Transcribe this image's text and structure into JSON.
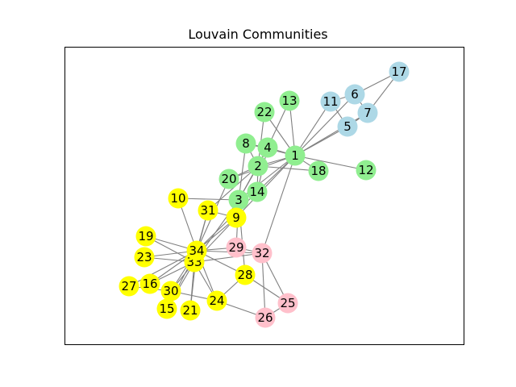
{
  "title": "Louvain Communities",
  "colors": {
    "community_blue": "#add8e6",
    "community_green": "#90ee90",
    "community_yellow": "#ffff00",
    "community_pink": "#ffc0cb",
    "edge": "#808080",
    "frame": "#000000"
  },
  "nodes": [
    {
      "id": "1",
      "community": "green"
    },
    {
      "id": "2",
      "community": "green"
    },
    {
      "id": "3",
      "community": "green"
    },
    {
      "id": "4",
      "community": "green"
    },
    {
      "id": "5",
      "community": "blue"
    },
    {
      "id": "6",
      "community": "blue"
    },
    {
      "id": "7",
      "community": "blue"
    },
    {
      "id": "8",
      "community": "green"
    },
    {
      "id": "9",
      "community": "yellow"
    },
    {
      "id": "10",
      "community": "yellow"
    },
    {
      "id": "11",
      "community": "blue"
    },
    {
      "id": "12",
      "community": "green"
    },
    {
      "id": "13",
      "community": "green"
    },
    {
      "id": "14",
      "community": "green"
    },
    {
      "id": "15",
      "community": "yellow"
    },
    {
      "id": "16",
      "community": "yellow"
    },
    {
      "id": "17",
      "community": "blue"
    },
    {
      "id": "18",
      "community": "green"
    },
    {
      "id": "19",
      "community": "yellow"
    },
    {
      "id": "20",
      "community": "green"
    },
    {
      "id": "21",
      "community": "yellow"
    },
    {
      "id": "22",
      "community": "green"
    },
    {
      "id": "23",
      "community": "yellow"
    },
    {
      "id": "24",
      "community": "yellow"
    },
    {
      "id": "25",
      "community": "pink"
    },
    {
      "id": "26",
      "community": "pink"
    },
    {
      "id": "27",
      "community": "yellow"
    },
    {
      "id": "28",
      "community": "yellow"
    },
    {
      "id": "29",
      "community": "pink"
    },
    {
      "id": "30",
      "community": "yellow"
    },
    {
      "id": "31",
      "community": "yellow"
    },
    {
      "id": "32",
      "community": "pink"
    },
    {
      "id": "33",
      "community": "yellow"
    },
    {
      "id": "34",
      "community": "yellow"
    }
  ],
  "edges": [
    [
      "1",
      "2"
    ],
    [
      "1",
      "3"
    ],
    [
      "1",
      "4"
    ],
    [
      "1",
      "5"
    ],
    [
      "1",
      "6"
    ],
    [
      "1",
      "7"
    ],
    [
      "1",
      "8"
    ],
    [
      "1",
      "9"
    ],
    [
      "1",
      "11"
    ],
    [
      "1",
      "12"
    ],
    [
      "1",
      "13"
    ],
    [
      "1",
      "14"
    ],
    [
      "1",
      "18"
    ],
    [
      "1",
      "20"
    ],
    [
      "1",
      "22"
    ],
    [
      "1",
      "32"
    ],
    [
      "2",
      "3"
    ],
    [
      "2",
      "4"
    ],
    [
      "2",
      "8"
    ],
    [
      "2",
      "14"
    ],
    [
      "2",
      "18"
    ],
    [
      "2",
      "20"
    ],
    [
      "2",
      "22"
    ],
    [
      "2",
      "31"
    ],
    [
      "3",
      "4"
    ],
    [
      "3",
      "8"
    ],
    [
      "3",
      "9"
    ],
    [
      "3",
      "10"
    ],
    [
      "3",
      "14"
    ],
    [
      "3",
      "28"
    ],
    [
      "3",
      "29"
    ],
    [
      "3",
      "33"
    ],
    [
      "4",
      "8"
    ],
    [
      "4",
      "13"
    ],
    [
      "4",
      "14"
    ],
    [
      "5",
      "7"
    ],
    [
      "5",
      "11"
    ],
    [
      "6",
      "7"
    ],
    [
      "6",
      "11"
    ],
    [
      "6",
      "17"
    ],
    [
      "7",
      "17"
    ],
    [
      "9",
      "31"
    ],
    [
      "9",
      "33"
    ],
    [
      "9",
      "34"
    ],
    [
      "10",
      "34"
    ],
    [
      "14",
      "34"
    ],
    [
      "15",
      "33"
    ],
    [
      "15",
      "34"
    ],
    [
      "16",
      "33"
    ],
    [
      "16",
      "34"
    ],
    [
      "19",
      "33"
    ],
    [
      "19",
      "34"
    ],
    [
      "20",
      "34"
    ],
    [
      "21",
      "33"
    ],
    [
      "21",
      "34"
    ],
    [
      "23",
      "33"
    ],
    [
      "23",
      "34"
    ],
    [
      "24",
      "26"
    ],
    [
      "24",
      "28"
    ],
    [
      "24",
      "30"
    ],
    [
      "24",
      "33"
    ],
    [
      "24",
      "34"
    ],
    [
      "25",
      "26"
    ],
    [
      "25",
      "28"
    ],
    [
      "25",
      "32"
    ],
    [
      "26",
      "32"
    ],
    [
      "27",
      "30"
    ],
    [
      "27",
      "34"
    ],
    [
      "28",
      "34"
    ],
    [
      "29",
      "32"
    ],
    [
      "29",
      "34"
    ],
    [
      "30",
      "33"
    ],
    [
      "30",
      "34"
    ],
    [
      "31",
      "33"
    ],
    [
      "31",
      "34"
    ],
    [
      "32",
      "33"
    ],
    [
      "32",
      "34"
    ],
    [
      "33",
      "34"
    ]
  ]
}
